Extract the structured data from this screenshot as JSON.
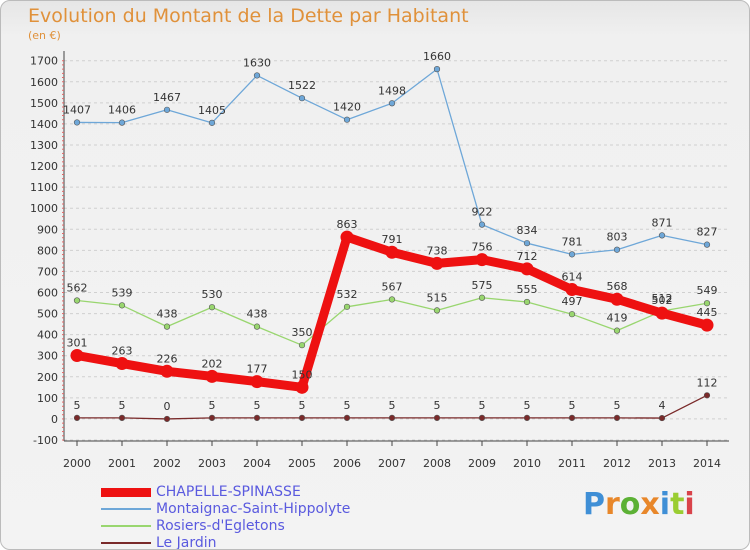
{
  "title": "Evolution du Montant de la Dette par Habitant",
  "subtitle": "(en €)",
  "brand": {
    "text": "Proxiti",
    "colors": [
      "#3f8fd6",
      "#e8872a",
      "#5cb135",
      "#e8872a",
      "#3f8fd6",
      "#9acd32",
      "#d9434a"
    ]
  },
  "chart_data": {
    "type": "line",
    "x": [
      "2000",
      "2001",
      "2002",
      "2003",
      "2004",
      "2005",
      "2006",
      "2007",
      "2008",
      "2009",
      "2010",
      "2011",
      "2012",
      "2013",
      "2014"
    ],
    "ylim": [
      -100,
      1700
    ],
    "yticks": [
      -100,
      0,
      100,
      200,
      300,
      400,
      500,
      600,
      700,
      800,
      900,
      1000,
      1100,
      1200,
      1300,
      1400,
      1500,
      1600,
      1700
    ],
    "grid": "horizontal dashed",
    "legend_position": "bottom-left",
    "series": [
      {
        "name": "CHAPELLE-SPINASSE",
        "color": "#ee1111",
        "width": 9,
        "values": [
          301,
          263,
          226,
          202,
          177,
          150,
          863,
          791,
          738,
          756,
          712,
          614,
          568,
          502,
          445
        ]
      },
      {
        "name": "Montaignac-Saint-Hippolyte",
        "color": "#6ea7d8",
        "width": 1.3,
        "values": [
          1407,
          1406,
          1467,
          1405,
          1630,
          1522,
          1420,
          1498,
          1660,
          922,
          834,
          781,
          803,
          871,
          827
        ]
      },
      {
        "name": "Rosiers-d'Egletons",
        "color": "#99d66f",
        "width": 1.3,
        "values": [
          562,
          539,
          438,
          530,
          438,
          350,
          532,
          567,
          515,
          575,
          555,
          497,
          419,
          512,
          549
        ]
      },
      {
        "name": "Le Jardin",
        "color": "#7a2a2a",
        "width": 1.3,
        "values": [
          5,
          5,
          0,
          5,
          5,
          5,
          5,
          5,
          5,
          5,
          5,
          5,
          5,
          4,
          112
        ]
      }
    ]
  }
}
